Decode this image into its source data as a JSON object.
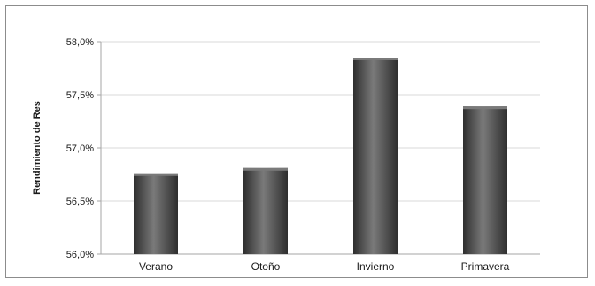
{
  "chart_data": {
    "type": "bar",
    "title": "",
    "xlabel": "",
    "ylabel": "Rendimiento de Res",
    "categories": [
      "Verano",
      "Otoño",
      "Invierno",
      "Primavera"
    ],
    "values": [
      56.76,
      56.81,
      57.85,
      57.39
    ],
    "ylim": [
      56.0,
      58.0
    ],
    "yticks": [
      56.0,
      56.5,
      57.0,
      57.5,
      58.0
    ],
    "ytick_labels": [
      "56,0%",
      "56,5%",
      "57,0%",
      "57,5%",
      "58,0%"
    ],
    "grid": true,
    "legend": "none",
    "colors": {
      "bar": "#4a4a4a",
      "bar_light": "#7a7a7a",
      "bar_dark": "#2e2e2e",
      "grid": "#d9d9d9",
      "axis": "#a6a6a6"
    }
  }
}
